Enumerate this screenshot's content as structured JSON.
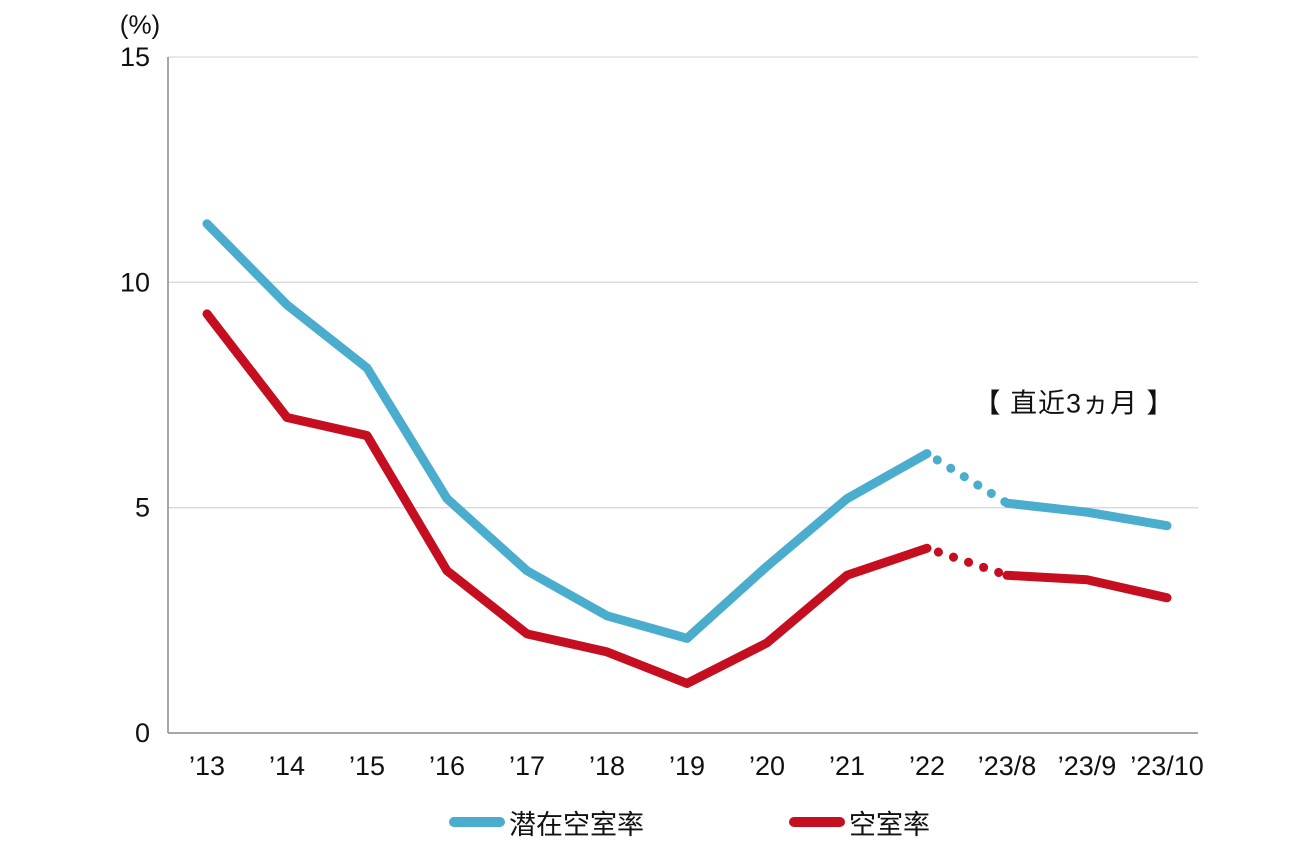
{
  "chart_data": {
    "type": "line",
    "title": "",
    "unit_label": "(%)",
    "annotation": "【 直近3ヵ月 】",
    "categories": [
      "’13",
      "’14",
      "’15",
      "’16",
      "’17",
      "’18",
      "’19",
      "’20",
      "’21",
      "’22",
      "’23/8",
      "’23/9",
      "’23/10"
    ],
    "y_ticks": [
      0,
      5,
      10,
      15
    ],
    "ylim": [
      0,
      15
    ],
    "grid": "horizontal-gridlines",
    "legend_position": "bottom",
    "dotted_segment": {
      "start_category": "’22",
      "end_category": "’23/8"
    },
    "series": [
      {
        "name": "潜在空室率",
        "color": "#4BADCE",
        "values": [
          11.3,
          9.5,
          8.1,
          5.2,
          3.6,
          2.6,
          2.1,
          3.7,
          5.2,
          6.2,
          5.1,
          4.9,
          4.6
        ]
      },
      {
        "name": "空室率",
        "color": "#C50F20",
        "values": [
          9.3,
          7.0,
          6.6,
          3.6,
          2.2,
          1.8,
          1.1,
          2.0,
          3.5,
          4.1,
          3.5,
          3.4,
          3.0
        ]
      }
    ]
  },
  "colors": {
    "grid": "#D9D9D9",
    "axis": "#8A8A8A",
    "text": "#111111"
  }
}
